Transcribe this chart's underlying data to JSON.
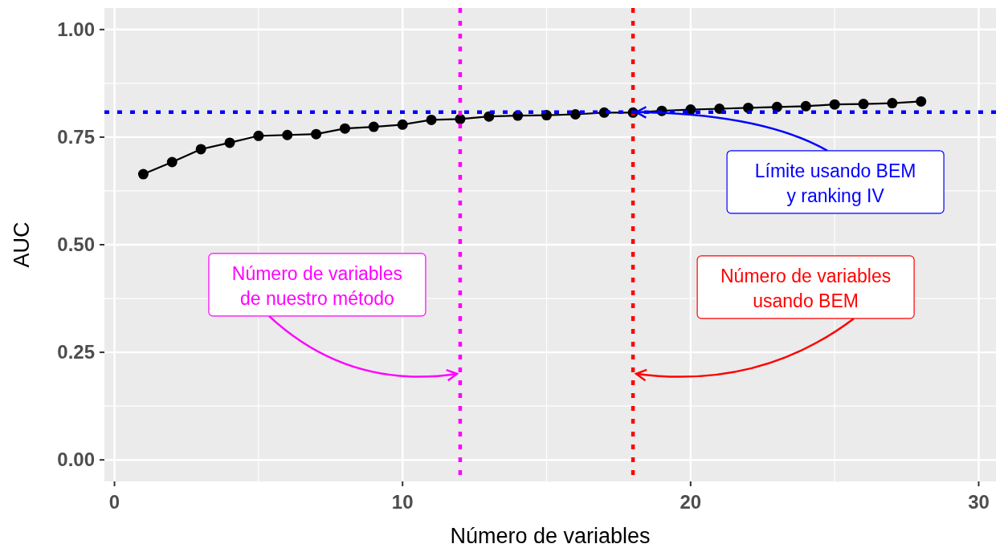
{
  "chart_data": {
    "type": "line",
    "xlabel": "Número de variables",
    "ylabel": "AUC",
    "x": [
      1,
      2,
      3,
      4,
      5,
      6,
      7,
      8,
      9,
      10,
      11,
      12,
      13,
      14,
      15,
      16,
      17,
      18,
      19,
      20,
      21,
      22,
      23,
      24,
      25,
      26,
      27,
      28
    ],
    "values": [
      0.664,
      0.692,
      0.722,
      0.737,
      0.753,
      0.755,
      0.757,
      0.77,
      0.774,
      0.779,
      0.79,
      0.792,
      0.798,
      0.8,
      0.801,
      0.803,
      0.807,
      0.807,
      0.811,
      0.814,
      0.816,
      0.818,
      0.82,
      0.822,
      0.826,
      0.827,
      0.829,
      0.833
    ],
    "color": "#000000",
    "marker": "circle",
    "line_style": "solid",
    "xlim": [
      -0.35,
      30.6
    ],
    "ylim": [
      -0.05,
      1.05
    ],
    "xticks": [
      0,
      10,
      20,
      30
    ],
    "yticks": [
      {
        "value": 0,
        "label": "0.00"
      },
      {
        "value": 0.25,
        "label": "0.25"
      },
      {
        "value": 0.5,
        "label": "0.50"
      },
      {
        "value": 0.75,
        "label": "0.75"
      },
      {
        "value": 1,
        "label": "1.00"
      }
    ],
    "grid": true,
    "ref_lines": [
      {
        "axis": "x",
        "value": 12,
        "label": "Número de variables\nde nuestro método",
        "color": "#ff00ff",
        "line_style": "dotted"
      },
      {
        "axis": "x",
        "value": 18,
        "label": "Número de variables\nusando BEM",
        "color": "#ff0000",
        "line_style": "dotted"
      },
      {
        "axis": "y",
        "value": 0.808,
        "label": "Límite usando BEM\ny ranking IV",
        "color": "#0000ff",
        "line_style": "dotted"
      }
    ]
  }
}
